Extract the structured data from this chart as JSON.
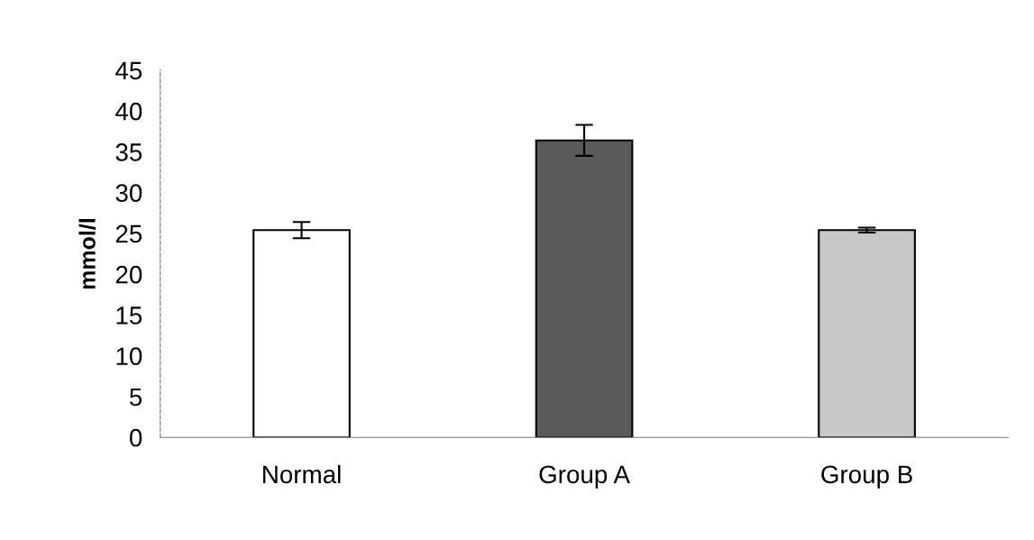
{
  "chart_data": {
    "type": "bar",
    "ylabel": "mmol/l",
    "categories": [
      "Normal",
      "Group A",
      "Group B"
    ],
    "values": [
      25.4,
      36.4,
      25.4
    ],
    "errors": [
      1.0,
      1.9,
      0.3
    ],
    "colors": [
      "#ffffff",
      "#5a5a5a",
      "#c8c8c8"
    ],
    "ylim": [
      0,
      45
    ],
    "yticks": [
      0,
      5,
      10,
      15,
      20,
      25,
      30,
      35,
      40,
      45
    ],
    "grid": false,
    "legend": false
  }
}
